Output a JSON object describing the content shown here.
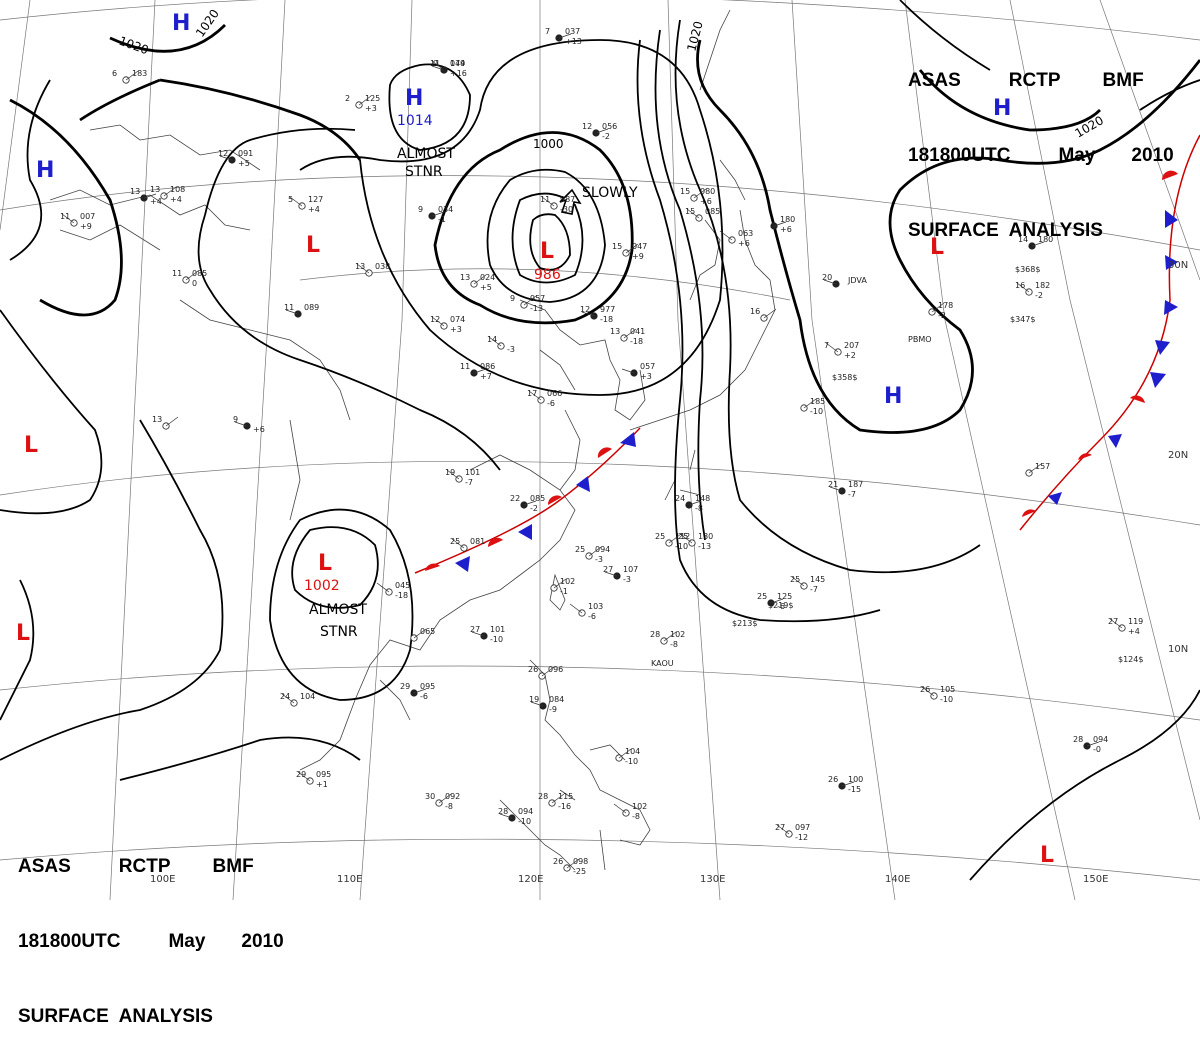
{
  "header": {
    "line1": [
      "ASAS",
      "RCTP",
      "BMF"
    ],
    "line2": [
      "181800UTC",
      "May",
      "2010"
    ],
    "line3": "SURFACE  ANALYSIS"
  },
  "grid_labels": {
    "lon": [
      "110E",
      "120E",
      "130E",
      "140E",
      "150E"
    ],
    "lat": [
      "30N",
      "20N",
      "10N"
    ],
    "partial_lon": "100E"
  },
  "pressure_centers": [
    {
      "type": "H",
      "label": "H",
      "value": "1014",
      "annotation": [
        "ALMOST",
        "STNR"
      ]
    },
    {
      "type": "L",
      "label": "L",
      "value": "986",
      "annotation": [
        "SLOWLY"
      ]
    },
    {
      "type": "L",
      "label": "L",
      "value": "1002",
      "annotation": [
        "ALMOST",
        "STNR"
      ]
    },
    {
      "type": "H",
      "label": "H"
    },
    {
      "type": "H",
      "label": "H"
    },
    {
      "type": "H",
      "label": "H"
    },
    {
      "type": "L",
      "label": "L"
    },
    {
      "type": "L",
      "label": "L"
    },
    {
      "type": "L",
      "label": "L"
    },
    {
      "type": "L",
      "label": "L"
    },
    {
      "type": "L",
      "label": "L"
    }
  ],
  "isobar_labels": [
    "1020",
    "1020",
    "1000",
    "1020",
    "1020"
  ],
  "station_labels": [
    "JDVA",
    "PBMO",
    "KAOU"
  ],
  "colors": {
    "high": "#1e1ecc",
    "low": "#dd1111",
    "cold_front": "#1e1ecc",
    "warm_front": "#dd1111"
  },
  "observations": [
    {
      "t": "7",
      "p": "037",
      "d": "+13"
    },
    {
      "t": "-0",
      "p": "174",
      "d": "+16"
    },
    {
      "t": "2",
      "p": "125",
      "d": "+3"
    },
    {
      "t": "12",
      "p": "091",
      "d": "+5"
    },
    {
      "t": "13",
      "p": "108",
      "d": "+4"
    },
    {
      "t": "5",
      "p": "127",
      "d": "+4"
    },
    {
      "t": "9",
      "p": "034",
      "d": "-1"
    },
    {
      "t": "13",
      "p": "038",
      "d": ""
    },
    {
      "t": "11",
      "p": "085",
      "d": "0"
    },
    {
      "t": "11",
      "p": "089",
      "d": ""
    },
    {
      "t": "13",
      "p": "024",
      "d": "+5"
    },
    {
      "t": "12",
      "p": "074",
      "d": "+3"
    },
    {
      "t": "12",
      "p": "056",
      "d": "-2"
    },
    {
      "t": "11",
      "p": "987",
      "d": "-30"
    },
    {
      "t": "15",
      "p": "047",
      "d": "+9"
    },
    {
      "t": "12",
      "p": "977",
      "d": "-18"
    },
    {
      "t": "9",
      "p": "957",
      "d": "-13"
    },
    {
      "t": "14",
      "p": "",
      "d": "-3"
    },
    {
      "t": "11",
      "p": "086",
      "d": "+7"
    },
    {
      "t": "17",
      "p": "066",
      "d": "-6"
    },
    {
      "t": "13",
      "p": "041",
      "d": "-18"
    },
    {
      "t": "",
      "p": "057",
      "d": "+3"
    },
    {
      "t": "15",
      "p": "080",
      "d": "+6"
    },
    {
      "t": "15",
      "p": "085",
      "d": ""
    },
    {
      "t": "",
      "p": "180",
      "d": "+6"
    },
    {
      "t": "",
      "p": "063",
      "d": "+6"
    },
    {
      "t": "16",
      "p": "",
      "d": ""
    },
    {
      "t": "20",
      "p": "",
      "d": ""
    },
    {
      "t": "",
      "p": "178",
      "d": "-2"
    },
    {
      "t": "7",
      "p": "207",
      "d": "+2"
    },
    {
      "t": "14",
      "p": "180",
      "d": ""
    },
    {
      "t": "16",
      "p": "182",
      "d": "-2"
    },
    {
      "t": "",
      "p": "185",
      "d": "-10"
    },
    {
      "t": "9",
      "p": "",
      "d": "+6"
    },
    {
      "t": "13",
      "p": "",
      "d": ""
    },
    {
      "t": "19",
      "p": "101",
      "d": "-7"
    },
    {
      "t": "22",
      "p": "085",
      "d": "-2"
    },
    {
      "t": "25",
      "p": "081",
      "d": ""
    },
    {
      "t": "25",
      "p": "094",
      "d": "-3"
    },
    {
      "t": "27",
      "p": "107",
      "d": "-3"
    },
    {
      "t": "25",
      "p": "112",
      "d": "-10"
    },
    {
      "t": "25",
      "p": "130",
      "d": "-13"
    },
    {
      "t": "24",
      "p": "148",
      "d": "-8"
    },
    {
      "t": "",
      "p": "045",
      "d": "-18"
    },
    {
      "t": "",
      "p": "065",
      "d": ""
    },
    {
      "t": "27",
      "p": "101",
      "d": "-10"
    },
    {
      "t": "",
      "p": "102",
      "d": "-1"
    },
    {
      "t": "",
      "p": "103",
      "d": "-6"
    },
    {
      "t": "25",
      "p": "125",
      "d": "-6"
    },
    {
      "t": "25",
      "p": "145",
      "d": "-7"
    },
    {
      "t": "28",
      "p": "102",
      "d": "-8"
    },
    {
      "t": "21",
      "p": "187",
      "d": "-7"
    },
    {
      "t": "",
      "p": "157",
      "d": ""
    },
    {
      "t": "27",
      "p": "119",
      "d": "+4"
    },
    {
      "t": "29",
      "p": "095",
      "d": "-6"
    },
    {
      "t": "24",
      "p": "104",
      "d": ""
    },
    {
      "t": "26",
      "p": "096",
      "d": ""
    },
    {
      "t": "19",
      "p": "084",
      "d": "-9"
    },
    {
      "t": "",
      "p": "104",
      "d": "-10"
    },
    {
      "t": "26",
      "p": "105",
      "d": "-10"
    },
    {
      "t": "28",
      "p": "094",
      "d": "-0"
    },
    {
      "t": "29",
      "p": "095",
      "d": "+1"
    },
    {
      "t": "30",
      "p": "092",
      "d": "-8"
    },
    {
      "t": "28",
      "p": "094",
      "d": "-10"
    },
    {
      "t": "28",
      "p": "115",
      "d": "-16"
    },
    {
      "t": "",
      "p": "102",
      "d": "-8"
    },
    {
      "t": "26",
      "p": "100",
      "d": "-15"
    },
    {
      "t": "27",
      "p": "097",
      "d": "-12"
    },
    {
      "t": "26",
      "p": "098",
      "d": "-25"
    },
    {
      "t": "11",
      "p": "049",
      "d": ""
    },
    {
      "t": "6",
      "p": "183",
      "d": ""
    },
    {
      "t": "11",
      "p": "007",
      "d": "+9"
    },
    {
      "t": "13",
      "p": "",
      "d": "+4"
    }
  ],
  "pressure_codes": [
    "$368$",
    "$347$",
    "$358$",
    "$219$",
    "$213$",
    "$124$"
  ]
}
